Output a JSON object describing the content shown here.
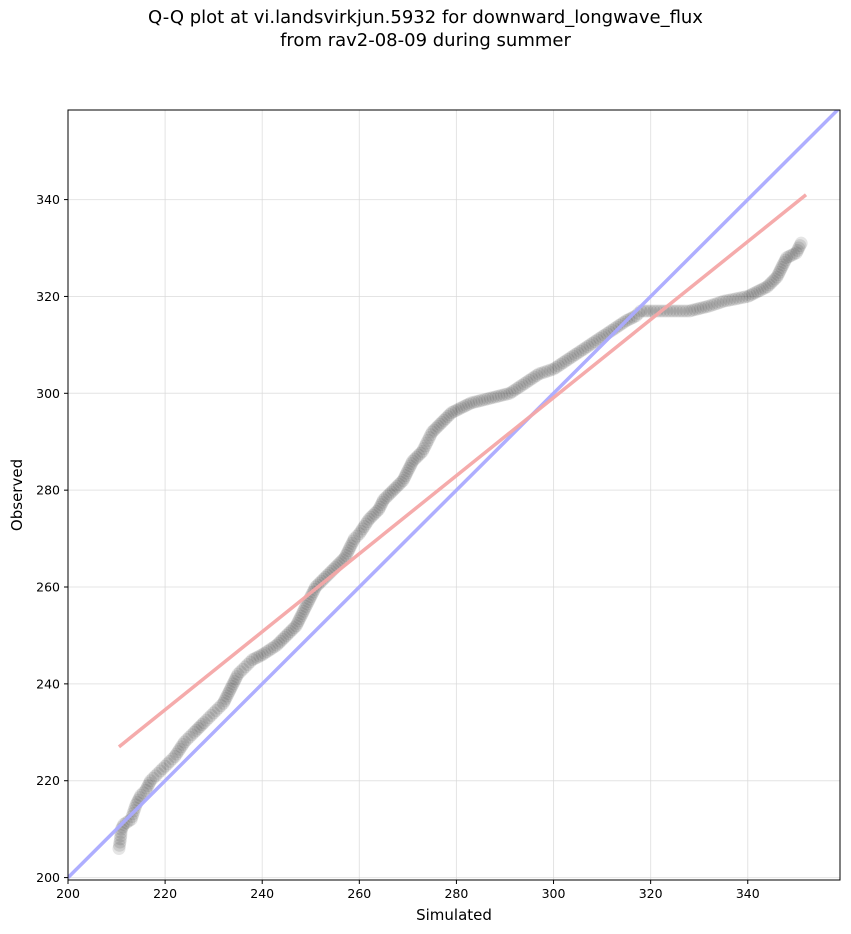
{
  "chart_data": {
    "type": "scatter",
    "title": "Q-Q plot at vi.landsvirkjun.5932 for downward_longwave_flux",
    "subtitle": "from rav2-08-09 during summer",
    "xlabel": "Simulated",
    "ylabel": "Observed",
    "xlim": [
      200,
      359
    ],
    "ylim": [
      199.5,
      358.5
    ],
    "xticks": [
      200,
      220,
      240,
      260,
      280,
      300,
      320,
      340
    ],
    "yticks": [
      200,
      220,
      240,
      260,
      280,
      300,
      320,
      340
    ],
    "grid": true,
    "points_color": "#000000",
    "reference_lines": [
      {
        "kind": "identity",
        "color": "#aaaaff",
        "x": [
          200,
          359
        ],
        "y": [
          200,
          359
        ]
      },
      {
        "kind": "fit",
        "color": "#f4a7a7",
        "x": [
          210.5,
          352
        ],
        "y": [
          227,
          341
        ]
      }
    ],
    "anchor_points": [
      [
        210.5,
        206
      ],
      [
        210.8,
        208
      ],
      [
        211,
        210
      ],
      [
        211.5,
        211
      ],
      [
        213,
        212
      ],
      [
        214,
        215
      ],
      [
        215,
        217
      ],
      [
        216,
        218
      ],
      [
        217,
        220
      ],
      [
        218,
        221
      ],
      [
        219,
        222
      ],
      [
        220,
        223
      ],
      [
        221,
        224
      ],
      [
        222,
        225
      ],
      [
        224,
        228
      ],
      [
        225,
        229
      ],
      [
        226,
        230
      ],
      [
        228,
        232
      ],
      [
        229,
        233
      ],
      [
        230,
        234
      ],
      [
        231,
        235
      ],
      [
        232,
        236
      ],
      [
        233,
        238
      ],
      [
        234,
        240
      ],
      [
        235,
        242
      ],
      [
        236,
        243
      ],
      [
        237,
        244
      ],
      [
        238,
        245
      ],
      [
        240,
        246
      ],
      [
        243,
        248
      ],
      [
        245,
        250
      ],
      [
        247,
        252
      ],
      [
        248,
        254
      ],
      [
        249,
        256
      ],
      [
        250,
        258
      ],
      [
        251,
        260
      ],
      [
        253,
        262
      ],
      [
        255,
        264
      ],
      [
        257,
        266
      ],
      [
        258,
        268
      ],
      [
        259,
        270
      ],
      [
        260,
        271
      ],
      [
        262,
        274
      ],
      [
        264,
        276
      ],
      [
        265,
        278
      ],
      [
        267,
        280
      ],
      [
        269,
        282
      ],
      [
        270,
        284
      ],
      [
        271,
        286
      ],
      [
        273,
        288
      ],
      [
        275,
        292
      ],
      [
        277,
        294
      ],
      [
        279,
        296
      ],
      [
        281,
        297
      ],
      [
        283,
        298
      ],
      [
        287,
        299
      ],
      [
        291,
        300
      ],
      [
        294,
        302
      ],
      [
        297,
        304
      ],
      [
        300,
        305
      ],
      [
        303,
        307
      ],
      [
        306,
        309
      ],
      [
        309,
        311
      ],
      [
        312,
        313
      ],
      [
        315,
        315
      ],
      [
        317,
        316
      ],
      [
        318,
        317
      ],
      [
        320,
        317
      ],
      [
        324,
        317
      ],
      [
        328,
        317
      ],
      [
        332,
        318
      ],
      [
        335,
        319
      ],
      [
        340,
        320
      ],
      [
        342,
        321
      ],
      [
        344,
        322
      ],
      [
        346,
        324
      ],
      [
        347,
        326
      ],
      [
        348,
        328
      ],
      [
        350,
        329
      ],
      [
        351,
        331
      ]
    ]
  }
}
